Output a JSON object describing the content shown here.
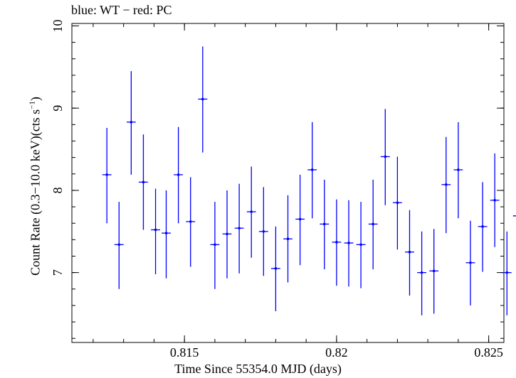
{
  "chart_data": {
    "type": "scatter",
    "title": "blue: WT − red: PC",
    "xlabel": "Time Since 55354.0 MJD (days)",
    "ylabel_main": "Count Rate (0.3−10.0 keV)(cts s",
    "ylabel_sup": "−1",
    "ylabel_end": ")",
    "xlim": [
      0.8113,
      0.8255
    ],
    "ylim": [
      6.15,
      10.03
    ],
    "xticks": [
      0.815,
      0.82,
      0.825
    ],
    "xtick_labels": [
      "0.815",
      "0.82",
      "0.825"
    ],
    "yticks": [
      7,
      8,
      9,
      10
    ],
    "ytick_labels": [
      "7",
      "8",
      "9",
      "10"
    ],
    "x_minor_step": 0.001,
    "y_minor_step": 0.2,
    "grid": false,
    "series": [
      {
        "color": "#0000ff",
        "points": [
          {
            "x": 0.81245,
            "y": 8.19,
            "xerr": 0.00015,
            "ylo": 7.6,
            "yhi": 8.76
          },
          {
            "x": 0.81285,
            "y": 7.34,
            "xerr": 0.00015,
            "ylo": 6.8,
            "yhi": 7.86
          },
          {
            "x": 0.81325,
            "y": 8.83,
            "xerr": 0.00015,
            "ylo": 8.19,
            "yhi": 9.45
          },
          {
            "x": 0.81365,
            "y": 8.1,
            "xerr": 0.00015,
            "ylo": 7.52,
            "yhi": 8.68
          },
          {
            "x": 0.81405,
            "y": 7.52,
            "xerr": 0.00015,
            "ylo": 6.98,
            "yhi": 8.02
          },
          {
            "x": 0.8144,
            "y": 7.48,
            "xerr": 0.00015,
            "ylo": 6.93,
            "yhi": 8.0
          },
          {
            "x": 0.8148,
            "y": 8.19,
            "xerr": 0.00015,
            "ylo": 7.6,
            "yhi": 8.77
          },
          {
            "x": 0.8152,
            "y": 7.62,
            "xerr": 0.00015,
            "ylo": 7.07,
            "yhi": 8.16
          },
          {
            "x": 0.8156,
            "y": 9.11,
            "xerr": 0.00015,
            "ylo": 8.46,
            "yhi": 9.75
          },
          {
            "x": 0.816,
            "y": 7.34,
            "xerr": 0.00015,
            "ylo": 6.8,
            "yhi": 7.86
          },
          {
            "x": 0.8164,
            "y": 7.47,
            "xerr": 0.00015,
            "ylo": 6.93,
            "yhi": 8.0
          },
          {
            "x": 0.8168,
            "y": 7.54,
            "xerr": 0.00015,
            "ylo": 6.99,
            "yhi": 8.08
          },
          {
            "x": 0.8172,
            "y": 7.74,
            "xerr": 0.00015,
            "ylo": 7.18,
            "yhi": 8.29
          },
          {
            "x": 0.8176,
            "y": 7.5,
            "xerr": 0.00015,
            "ylo": 6.96,
            "yhi": 8.04
          },
          {
            "x": 0.818,
            "y": 7.05,
            "xerr": 0.00015,
            "ylo": 6.53,
            "yhi": 7.56
          },
          {
            "x": 0.8184,
            "y": 7.41,
            "xerr": 0.00015,
            "ylo": 6.88,
            "yhi": 7.94
          },
          {
            "x": 0.8188,
            "y": 7.65,
            "xerr": 0.00015,
            "ylo": 7.09,
            "yhi": 8.19
          },
          {
            "x": 0.8192,
            "y": 8.25,
            "xerr": 0.00015,
            "ylo": 7.66,
            "yhi": 8.83
          },
          {
            "x": 0.8196,
            "y": 7.59,
            "xerr": 0.00015,
            "ylo": 7.04,
            "yhi": 8.13
          },
          {
            "x": 0.82,
            "y": 7.37,
            "xerr": 0.00015,
            "ylo": 6.84,
            "yhi": 7.89
          },
          {
            "x": 0.8204,
            "y": 7.36,
            "xerr": 0.00015,
            "ylo": 6.83,
            "yhi": 7.88
          },
          {
            "x": 0.8208,
            "y": 7.34,
            "xerr": 0.00015,
            "ylo": 6.81,
            "yhi": 7.86
          },
          {
            "x": 0.8212,
            "y": 7.59,
            "xerr": 0.00015,
            "ylo": 7.04,
            "yhi": 8.13
          },
          {
            "x": 0.8216,
            "y": 8.41,
            "xerr": 0.00015,
            "ylo": 7.82,
            "yhi": 8.99
          },
          {
            "x": 0.822,
            "y": 7.85,
            "xerr": 0.00015,
            "ylo": 7.28,
            "yhi": 8.41
          },
          {
            "x": 0.8224,
            "y": 7.25,
            "xerr": 0.00015,
            "ylo": 6.72,
            "yhi": 7.76
          },
          {
            "x": 0.8228,
            "y": 7.0,
            "xerr": 0.00015,
            "ylo": 6.48,
            "yhi": 7.5
          },
          {
            "x": 0.8232,
            "y": 7.02,
            "xerr": 0.00015,
            "ylo": 6.5,
            "yhi": 7.53
          },
          {
            "x": 0.8236,
            "y": 8.07,
            "xerr": 0.00015,
            "ylo": 7.48,
            "yhi": 8.65
          },
          {
            "x": 0.824,
            "y": 8.25,
            "xerr": 0.00015,
            "ylo": 7.66,
            "yhi": 8.83
          },
          {
            "x": 0.8244,
            "y": 7.12,
            "xerr": 0.00015,
            "ylo": 6.6,
            "yhi": 7.63
          },
          {
            "x": 0.8248,
            "y": 7.56,
            "xerr": 0.00015,
            "ylo": 7.01,
            "yhi": 8.1
          },
          {
            "x": 0.8252,
            "y": 7.88,
            "xerr": 0.00015,
            "ylo": 7.31,
            "yhi": 8.45
          },
          {
            "x": 0.8256,
            "y": 7.0,
            "xerr": 0.00015,
            "ylo": 6.48,
            "yhi": 7.5
          },
          {
            "x": 0.8261,
            "y": 7.69,
            "xerr": 0.0003,
            "ylo": 7.26,
            "yhi": 8.11
          }
        ]
      }
    ]
  }
}
